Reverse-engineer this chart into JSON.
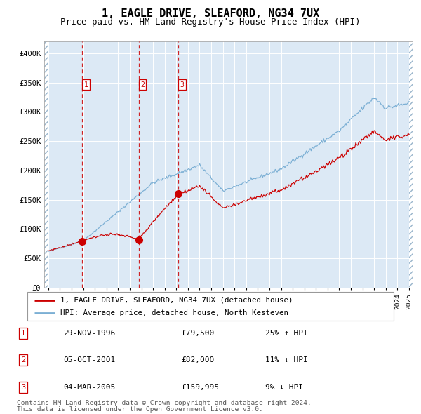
{
  "title": "1, EAGLE DRIVE, SLEAFORD, NG34 7UX",
  "subtitle": "Price paid vs. HM Land Registry's House Price Index (HPI)",
  "title_fontsize": 11,
  "subtitle_fontsize": 9,
  "background_color": "#dce9f5",
  "red_line_color": "#cc0000",
  "blue_line_color": "#7bafd4",
  "sale_marker_color": "#cc0000",
  "dashed_line_color": "#cc0000",
  "ylim": [
    0,
    420000
  ],
  "yticks": [
    0,
    50000,
    100000,
    150000,
    200000,
    250000,
    300000,
    350000,
    400000
  ],
  "ytick_labels": [
    "£0",
    "£50K",
    "£100K",
    "£150K",
    "£200K",
    "£250K",
    "£300K",
    "£350K",
    "£400K"
  ],
  "sale1_year": 1996.91,
  "sale1_price": 79500,
  "sale2_year": 2001.76,
  "sale2_price": 82000,
  "sale3_year": 2005.17,
  "sale3_price": 159995,
  "legend_line1": "1, EAGLE DRIVE, SLEAFORD, NG34 7UX (detached house)",
  "legend_line2": "HPI: Average price, detached house, North Kesteven",
  "footer1": "Contains HM Land Registry data © Crown copyright and database right 2024.",
  "footer2": "This data is licensed under the Open Government Licence v3.0.",
  "table_entries": [
    {
      "num": "1",
      "date": "29-NOV-1996",
      "price": "£79,500",
      "hpi": "25% ↑ HPI"
    },
    {
      "num": "2",
      "date": "05-OCT-2001",
      "price": "£82,000",
      "hpi": "11% ↓ HPI"
    },
    {
      "num": "3",
      "date": "04-MAR-2005",
      "price": "£159,995",
      "hpi": "9% ↓ HPI"
    }
  ]
}
